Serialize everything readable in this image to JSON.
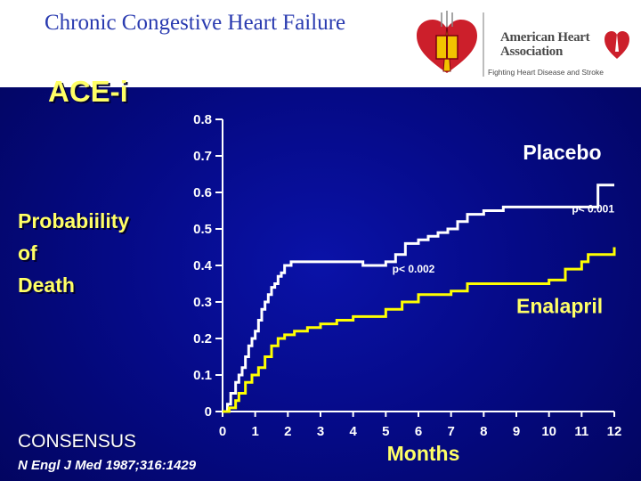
{
  "header": {
    "title": "Chronic Congestive Heart Failure",
    "logo_text": "American Heart Association",
    "logo_tagline": "Fighting Heart Disease and Stroke"
  },
  "section_title": "ACE-i",
  "ylabel_lines": [
    "Probabiility",
    "of",
    "Death"
  ],
  "study_label": "CONSENSUS",
  "citation": "N Engl J Med 1987;316:1429",
  "colors": {
    "background": "#050a86",
    "placebo": "#ffffff",
    "enalapril": "#ffff00",
    "accent_text": "#ffff66"
  },
  "chart_data": {
    "type": "line",
    "xlabel": "Months",
    "ylabel": "Probabiility of Death",
    "xlim": [
      0,
      12
    ],
    "ylim": [
      0,
      0.8
    ],
    "x_ticks": [
      "0",
      "1",
      "2",
      "3",
      "4",
      "5",
      "6",
      "7",
      "8",
      "9",
      "10",
      "11",
      "12"
    ],
    "y_ticks": [
      "0",
      "0.1",
      "0.2",
      "0.3",
      "0.4",
      "0.5",
      "0.6",
      "0.7",
      "0.8"
    ],
    "series": [
      {
        "name": "Placebo",
        "x": [
          0,
          0.15,
          0.25,
          0.4,
          0.5,
          0.6,
          0.7,
          0.8,
          0.9,
          1.0,
          1.1,
          1.2,
          1.3,
          1.4,
          1.5,
          1.6,
          1.7,
          1.8,
          1.9,
          2.0,
          2.1,
          2.2,
          2.3,
          2.4,
          2.5,
          2.6,
          2.7,
          2.8,
          3.3,
          4.0,
          4.3,
          5.0,
          5.3,
          5.6,
          6.0,
          6.3,
          6.6,
          6.9,
          7.2,
          7.5,
          8.0,
          8.6,
          11.5,
          12.0
        ],
        "values": [
          0,
          0.02,
          0.05,
          0.08,
          0.1,
          0.12,
          0.15,
          0.18,
          0.2,
          0.22,
          0.25,
          0.28,
          0.3,
          0.32,
          0.34,
          0.35,
          0.37,
          0.38,
          0.4,
          0.4,
          0.41,
          0.41,
          0.41,
          0.41,
          0.41,
          0.41,
          0.41,
          0.41,
          0.41,
          0.41,
          0.4,
          0.41,
          0.43,
          0.46,
          0.47,
          0.48,
          0.49,
          0.5,
          0.52,
          0.54,
          0.55,
          0.56,
          0.62,
          0.62
        ]
      },
      {
        "name": "Enalapril",
        "x": [
          0,
          0.2,
          0.4,
          0.5,
          0.7,
          0.9,
          1.1,
          1.3,
          1.5,
          1.7,
          1.9,
          2.2,
          2.6,
          3.0,
          3.5,
          4.0,
          4.5,
          5.0,
          5.5,
          6.0,
          6.5,
          7.0,
          7.5,
          8.0,
          9.0,
          10.0,
          10.5,
          11.0,
          11.2,
          12.0
        ],
        "values": [
          0,
          0.01,
          0.03,
          0.05,
          0.08,
          0.1,
          0.12,
          0.15,
          0.18,
          0.2,
          0.21,
          0.22,
          0.23,
          0.24,
          0.25,
          0.26,
          0.26,
          0.28,
          0.3,
          0.32,
          0.32,
          0.33,
          0.35,
          0.35,
          0.35,
          0.36,
          0.39,
          0.41,
          0.43,
          0.45
        ]
      }
    ],
    "annotations": [
      {
        "text": "Placebo",
        "x": 9.2,
        "y": 0.69,
        "size": "large",
        "color": "#ffffff"
      },
      {
        "text": "p< 0.001",
        "x": 10.7,
        "y": 0.545,
        "size": "small",
        "color": "#ffffff"
      },
      {
        "text": "p< 0.002",
        "x": 5.2,
        "y": 0.38,
        "size": "small",
        "color": "#ffffff"
      },
      {
        "text": "Enalapril",
        "x": 9.0,
        "y": 0.27,
        "size": "large",
        "color": "#ffff66"
      }
    ],
    "grid": false
  }
}
